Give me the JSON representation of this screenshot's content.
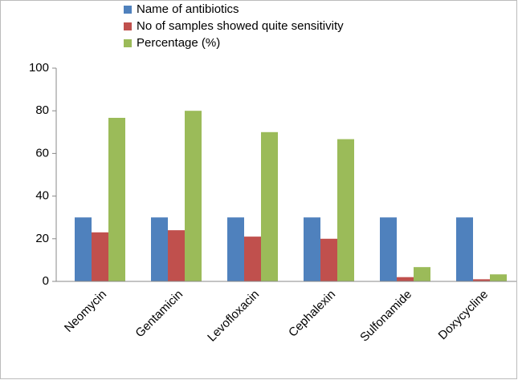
{
  "chart_data": {
    "type": "bar",
    "categories": [
      "Neomycin",
      "Gentamicin",
      "Levofloxacin",
      "Cephalexin",
      "Sulfonamide",
      "Doxycycline"
    ],
    "series": [
      {
        "name": "Name of antibiotics",
        "color": "#4f81bd",
        "values": [
          30,
          30,
          30,
          30,
          30,
          30
        ]
      },
      {
        "name": "No of samples showed quite sensitivity",
        "color": "#c0504d",
        "values": [
          23,
          24,
          21,
          20,
          2,
          1
        ]
      },
      {
        "name": "Percentage (%)",
        "color": "#9bbb59",
        "values": [
          76.7,
          80,
          70,
          66.7,
          6.7,
          3.3
        ]
      }
    ],
    "ylim": [
      0,
      100
    ],
    "yticks": [
      0,
      20,
      40,
      60,
      80,
      100
    ],
    "grid": false,
    "legend": "top"
  }
}
